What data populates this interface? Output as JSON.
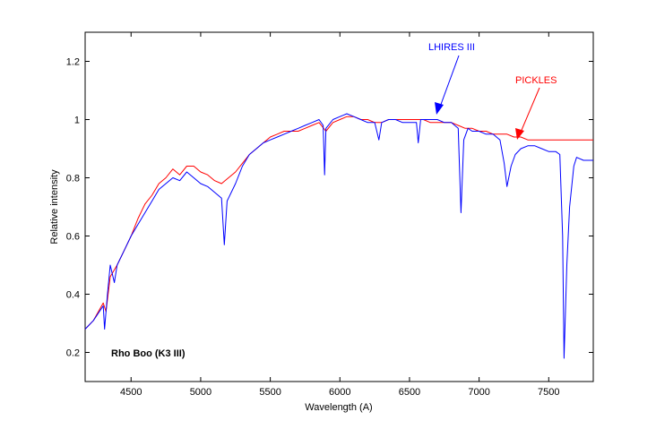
{
  "chart_data": {
    "type": "line",
    "xlabel": "Wavelength (A)",
    "ylabel": "Relative intensity",
    "xlim": [
      4170,
      7820
    ],
    "ylim": [
      0.1,
      1.3
    ],
    "xticks": [
      4500,
      5000,
      5500,
      6000,
      6500,
      7000,
      7500
    ],
    "yticks": [
      0.2,
      0.4,
      0.6,
      0.8,
      1,
      1.2
    ],
    "ytick_labels": [
      "0.2",
      "0.4",
      "0.6",
      "0.8",
      "1",
      "1.2"
    ],
    "grid": false,
    "annotations": {
      "star_label": "Rho Boo (K3 III)",
      "lhires_label": "LHIRES III",
      "pickles_label": "PICKLES"
    },
    "series": [
      {
        "name": "PICKLES",
        "color": "#ff0000",
        "points": [
          [
            4170,
            0.28
          ],
          [
            4230,
            0.31
          ],
          [
            4300,
            0.37
          ],
          [
            4320,
            0.34
          ],
          [
            4350,
            0.46
          ],
          [
            4400,
            0.5
          ],
          [
            4450,
            0.55
          ],
          [
            4500,
            0.6
          ],
          [
            4550,
            0.66
          ],
          [
            4600,
            0.71
          ],
          [
            4650,
            0.74
          ],
          [
            4700,
            0.78
          ],
          [
            4750,
            0.8
          ],
          [
            4800,
            0.83
          ],
          [
            4850,
            0.81
          ],
          [
            4900,
            0.84
          ],
          [
            4950,
            0.84
          ],
          [
            5000,
            0.82
          ],
          [
            5050,
            0.81
          ],
          [
            5100,
            0.79
          ],
          [
            5150,
            0.78
          ],
          [
            5200,
            0.8
          ],
          [
            5250,
            0.82
          ],
          [
            5300,
            0.85
          ],
          [
            5350,
            0.88
          ],
          [
            5400,
            0.9
          ],
          [
            5450,
            0.92
          ],
          [
            5500,
            0.94
          ],
          [
            5550,
            0.95
          ],
          [
            5600,
            0.96
          ],
          [
            5650,
            0.96
          ],
          [
            5700,
            0.96
          ],
          [
            5750,
            0.97
          ],
          [
            5800,
            0.98
          ],
          [
            5850,
            0.99
          ],
          [
            5900,
            0.96
          ],
          [
            5950,
            0.99
          ],
          [
            6000,
            1.0
          ],
          [
            6050,
            1.01
          ],
          [
            6100,
            1.01
          ],
          [
            6150,
            1.0
          ],
          [
            6200,
            1.0
          ],
          [
            6250,
            0.99
          ],
          [
            6300,
            0.99
          ],
          [
            6350,
            1.0
          ],
          [
            6400,
            1.0
          ],
          [
            6450,
            1.0
          ],
          [
            6500,
            1.0
          ],
          [
            6550,
            1.0
          ],
          [
            6600,
            1.0
          ],
          [
            6650,
            0.99
          ],
          [
            6700,
            0.99
          ],
          [
            6750,
            0.99
          ],
          [
            6800,
            0.99
          ],
          [
            6850,
            0.98
          ],
          [
            6900,
            0.97
          ],
          [
            6950,
            0.97
          ],
          [
            7000,
            0.96
          ],
          [
            7050,
            0.96
          ],
          [
            7100,
            0.95
          ],
          [
            7150,
            0.95
          ],
          [
            7200,
            0.95
          ],
          [
            7250,
            0.94
          ],
          [
            7300,
            0.94
          ],
          [
            7350,
            0.93
          ],
          [
            7400,
            0.93
          ],
          [
            7450,
            0.93
          ],
          [
            7500,
            0.93
          ],
          [
            7550,
            0.93
          ],
          [
            7600,
            0.93
          ],
          [
            7650,
            0.93
          ],
          [
            7700,
            0.93
          ],
          [
            7750,
            0.93
          ],
          [
            7820,
            0.93
          ]
        ]
      },
      {
        "name": "LHIRES III",
        "color": "#0000ff",
        "points": [
          [
            4170,
            0.28
          ],
          [
            4230,
            0.31
          ],
          [
            4300,
            0.36
          ],
          [
            4310,
            0.28
          ],
          [
            4330,
            0.4
          ],
          [
            4350,
            0.5
          ],
          [
            4380,
            0.44
          ],
          [
            4400,
            0.5
          ],
          [
            4450,
            0.55
          ],
          [
            4500,
            0.6
          ],
          [
            4550,
            0.64
          ],
          [
            4600,
            0.68
          ],
          [
            4650,
            0.72
          ],
          [
            4700,
            0.76
          ],
          [
            4750,
            0.78
          ],
          [
            4800,
            0.8
          ],
          [
            4850,
            0.79
          ],
          [
            4900,
            0.82
          ],
          [
            4950,
            0.8
          ],
          [
            5000,
            0.78
          ],
          [
            5050,
            0.77
          ],
          [
            5100,
            0.75
          ],
          [
            5150,
            0.73
          ],
          [
            5170,
            0.57
          ],
          [
            5190,
            0.72
          ],
          [
            5250,
            0.78
          ],
          [
            5300,
            0.84
          ],
          [
            5350,
            0.88
          ],
          [
            5400,
            0.9
          ],
          [
            5450,
            0.92
          ],
          [
            5500,
            0.93
          ],
          [
            5550,
            0.94
          ],
          [
            5600,
            0.95
          ],
          [
            5650,
            0.96
          ],
          [
            5700,
            0.97
          ],
          [
            5750,
            0.98
          ],
          [
            5800,
            0.99
          ],
          [
            5850,
            1.0
          ],
          [
            5880,
            0.98
          ],
          [
            5890,
            0.81
          ],
          [
            5900,
            0.97
          ],
          [
            5950,
            1.0
          ],
          [
            6000,
            1.01
          ],
          [
            6050,
            1.02
          ],
          [
            6100,
            1.01
          ],
          [
            6150,
            1.0
          ],
          [
            6200,
            0.99
          ],
          [
            6250,
            0.99
          ],
          [
            6280,
            0.93
          ],
          [
            6300,
            0.99
          ],
          [
            6350,
            1.0
          ],
          [
            6400,
            1.0
          ],
          [
            6450,
            0.99
          ],
          [
            6500,
            0.99
          ],
          [
            6550,
            0.99
          ],
          [
            6563,
            0.92
          ],
          [
            6580,
            1.0
          ],
          [
            6650,
            1.0
          ],
          [
            6700,
            1.0
          ],
          [
            6750,
            0.99
          ],
          [
            6800,
            0.99
          ],
          [
            6850,
            0.97
          ],
          [
            6870,
            0.68
          ],
          [
            6890,
            0.93
          ],
          [
            6920,
            0.97
          ],
          [
            6950,
            0.96
          ],
          [
            7000,
            0.96
          ],
          [
            7050,
            0.95
          ],
          [
            7100,
            0.95
          ],
          [
            7150,
            0.93
          ],
          [
            7180,
            0.85
          ],
          [
            7200,
            0.77
          ],
          [
            7230,
            0.84
          ],
          [
            7260,
            0.88
          ],
          [
            7300,
            0.9
          ],
          [
            7350,
            0.91
          ],
          [
            7400,
            0.91
          ],
          [
            7450,
            0.9
          ],
          [
            7500,
            0.89
          ],
          [
            7550,
            0.89
          ],
          [
            7580,
            0.88
          ],
          [
            7600,
            0.6
          ],
          [
            7610,
            0.18
          ],
          [
            7630,
            0.5
          ],
          [
            7650,
            0.7
          ],
          [
            7680,
            0.84
          ],
          [
            7700,
            0.87
          ],
          [
            7750,
            0.86
          ],
          [
            7800,
            0.86
          ],
          [
            7820,
            0.86
          ]
        ]
      }
    ]
  }
}
